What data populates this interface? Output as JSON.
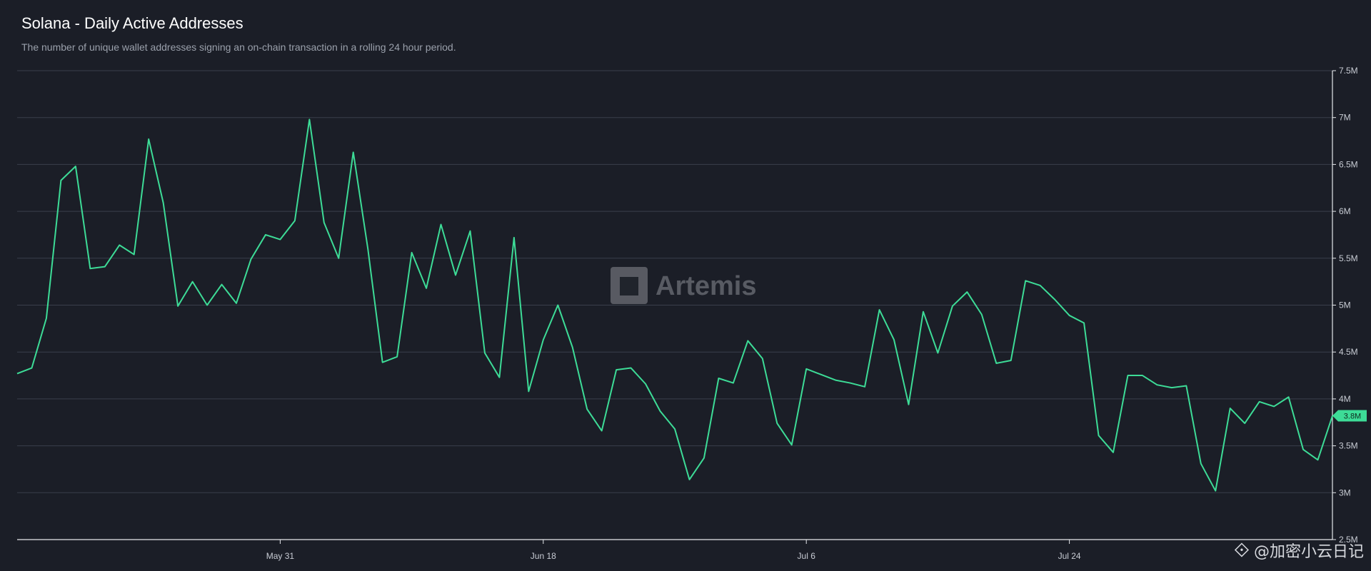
{
  "header": {
    "title": "Solana - Daily Active Addresses",
    "subtitle": "The number of unique wallet addresses signing an on-chain transaction in a rolling 24 hour period."
  },
  "watermark": {
    "text": "Artemis"
  },
  "footer_watermark": {
    "text": "@加密小云日记",
    "icon": "binance-diamond-icon"
  },
  "colors": {
    "background": "#1b1e27",
    "line": "#3ddc97",
    "grid": "#3a3f4b",
    "axis": "#e6e8ec"
  },
  "chart_data": {
    "type": "line",
    "title": "Solana - Daily Active Addresses",
    "xlabel": "",
    "ylabel": "",
    "ylim": [
      2500000,
      7500000
    ],
    "yticks": [
      {
        "value": 2500000,
        "label": "2.5M"
      },
      {
        "value": 3000000,
        "label": "3M"
      },
      {
        "value": 3500000,
        "label": "3.5M"
      },
      {
        "value": 4000000,
        "label": "4M"
      },
      {
        "value": 4500000,
        "label": "4.5M"
      },
      {
        "value": 5000000,
        "label": "5M"
      },
      {
        "value": 5500000,
        "label": "5.5M"
      },
      {
        "value": 6000000,
        "label": "6M"
      },
      {
        "value": 6500000,
        "label": "6.5M"
      },
      {
        "value": 7000000,
        "label": "7M"
      },
      {
        "value": 7500000,
        "label": "7.5M"
      }
    ],
    "xticks": [
      {
        "index": 18,
        "label": "May 31"
      },
      {
        "index": 36,
        "label": "Jun 18"
      },
      {
        "index": 54,
        "label": "Jul 6"
      },
      {
        "index": 72,
        "label": "Jul 24"
      }
    ],
    "grid": true,
    "last_value_label": "3.8M",
    "series": [
      {
        "values": [
          4270000,
          4330000,
          4860000,
          6330000,
          6480000,
          5390000,
          5410000,
          5640000,
          5540000,
          6770000,
          6090000,
          4990000,
          5250000,
          5000000,
          5220000,
          5020000,
          5490000,
          5750000,
          5700000,
          5900000,
          6980000,
          5880000,
          5500000,
          6630000,
          5600000,
          4390000,
          4450000,
          5560000,
          5180000,
          5860000,
          5320000,
          5790000,
          4490000,
          4230000,
          5720000,
          4080000,
          4630000,
          5000000,
          4550000,
          3890000,
          3660000,
          4310000,
          4330000,
          4160000,
          3870000,
          3680000,
          3140000,
          3370000,
          4220000,
          4170000,
          4620000,
          4430000,
          3740000,
          3510000,
          4320000,
          4260000,
          4200000,
          4170000,
          4130000,
          4950000,
          4630000,
          3940000,
          4930000,
          4490000,
          4990000,
          5140000,
          4900000,
          4380000,
          4410000,
          5260000,
          5210000,
          5060000,
          4890000,
          4810000,
          3610000,
          3430000,
          4250000,
          4250000,
          4150000,
          4120000,
          4140000,
          3310000,
          3020000,
          3900000,
          3740000,
          3970000,
          3920000,
          4020000,
          3460000,
          3350000,
          3820000
        ]
      }
    ]
  }
}
